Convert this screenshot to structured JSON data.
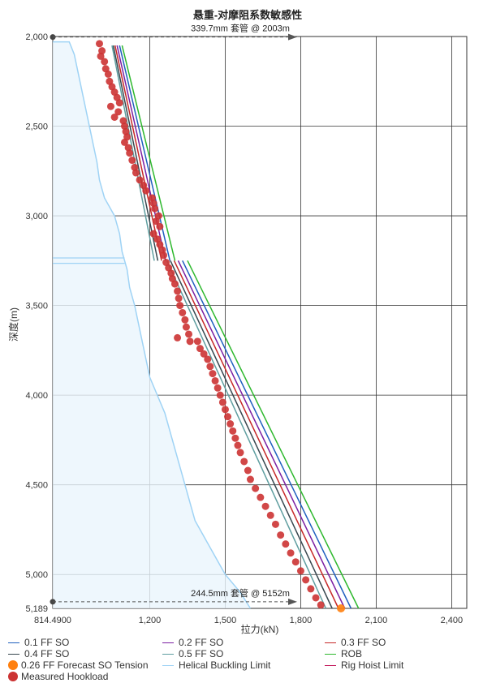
{
  "chart_data": {
    "type": "line",
    "title": "悬重-对摩阻系数敏感性",
    "xlabel": "拉力(kN)",
    "ylabel": "深度(m)",
    "xlim": [
      814.49,
      2460
    ],
    "ylim": [
      2000,
      5189
    ],
    "y_inverted": true,
    "x_ticks": [
      814.49,
      1200,
      1500,
      1800,
      2100,
      2400
    ],
    "x_tick_labels": [
      "814.4900",
      "1,200",
      "1,500",
      "1,800",
      "2,100",
      "2,400"
    ],
    "y_ticks": [
      2000,
      2500,
      3000,
      3500,
      4000,
      4500,
      5000,
      5189
    ],
    "y_tick_labels": [
      "2,000",
      "2,500",
      "3,000",
      "3,500",
      "4,000",
      "4,500",
      "5,000",
      "5,189"
    ],
    "grid": true,
    "legend_position": "bottom",
    "annotations": [
      {
        "text": "339.7mm 套管 @ 2003m",
        "depth": 2003
      },
      {
        "text": "244.5mm 套管 @ 5152m",
        "depth": 5152
      }
    ],
    "series": [
      {
        "name": "0.1 FF SO",
        "color": "#1f5fbf",
        "style": "line",
        "points": [
          [
            1080,
            2050
          ],
          [
            1280,
            3250
          ],
          [
            1330,
            3250
          ],
          [
            2000,
            5189
          ]
        ]
      },
      {
        "name": "0.2 FF SO",
        "color": "#7b1fa2",
        "style": "line",
        "points": [
          [
            1070,
            2050
          ],
          [
            1263,
            3250
          ],
          [
            1313,
            3250
          ],
          [
            1975,
            5189
          ]
        ]
      },
      {
        "name": "0.3 FF SO",
        "color": "#c62828",
        "style": "line",
        "points": [
          [
            1062,
            2050
          ],
          [
            1247,
            3250
          ],
          [
            1297,
            3250
          ],
          [
            1950,
            5189
          ]
        ]
      },
      {
        "name": "0.4 FF SO",
        "color": "#37474f",
        "style": "line",
        "points": [
          [
            1055,
            2050
          ],
          [
            1232,
            3250
          ],
          [
            1282,
            3250
          ],
          [
            1925,
            5189
          ]
        ]
      },
      {
        "name": "0.5 FF SO",
        "color": "#5f9ea0",
        "style": "line",
        "points": [
          [
            1050,
            2050
          ],
          [
            1218,
            3250
          ],
          [
            1268,
            3250
          ],
          [
            1900,
            5189
          ]
        ]
      },
      {
        "name": "ROB",
        "color": "#2eb82e",
        "style": "line",
        "points": [
          [
            1090,
            2050
          ],
          [
            1300,
            3250
          ],
          [
            1350,
            3250
          ],
          [
            2030,
            5189
          ]
        ]
      },
      {
        "name": "0.26 FF Forecast SO Tension",
        "color": "#ff7f0e",
        "style": "marker",
        "points": [
          [
            1960,
            5189
          ]
        ]
      },
      {
        "name": "Helical Buckling Limit",
        "color": "#9fd3f5",
        "style": "area",
        "points": [
          [
            814.49,
            2030
          ],
          [
            880,
            2030
          ],
          [
            900,
            2100
          ],
          [
            930,
            2300
          ],
          [
            960,
            2500
          ],
          [
            990,
            2700
          ],
          [
            1000,
            2800
          ],
          [
            1020,
            2900
          ],
          [
            1060,
            3000
          ],
          [
            1080,
            3100
          ],
          [
            1090,
            3200
          ],
          [
            1100,
            3250
          ],
          [
            1110,
            3300
          ],
          [
            1120,
            3400
          ],
          [
            1140,
            3500
          ],
          [
            1170,
            3700
          ],
          [
            1200,
            3900
          ],
          [
            1230,
            4000
          ],
          [
            1260,
            4100
          ],
          [
            1300,
            4300
          ],
          [
            1340,
            4500
          ],
          [
            1380,
            4700
          ],
          [
            1420,
            4800
          ],
          [
            1460,
            4900
          ],
          [
            1500,
            5000
          ],
          [
            1560,
            5100
          ],
          [
            1600,
            5189
          ]
        ]
      },
      {
        "name": "Rig Hoist Limit",
        "color": "#c2185b",
        "style": "line",
        "points": []
      },
      {
        "name": "Measured Hookload",
        "color": "#cc3333",
        "style": "marker",
        "points": [
          [
            1000,
            2040
          ],
          [
            1010,
            2080
          ],
          [
            1005,
            2110
          ],
          [
            1020,
            2140
          ],
          [
            1025,
            2180
          ],
          [
            1035,
            2210
          ],
          [
            1040,
            2250
          ],
          [
            1050,
            2280
          ],
          [
            1060,
            2310
          ],
          [
            1070,
            2340
          ],
          [
            1080,
            2370
          ],
          [
            1045,
            2390
          ],
          [
            1075,
            2420
          ],
          [
            1060,
            2450
          ],
          [
            1095,
            2470
          ],
          [
            1100,
            2500
          ],
          [
            1105,
            2530
          ],
          [
            1110,
            2560
          ],
          [
            1100,
            2590
          ],
          [
            1115,
            2620
          ],
          [
            1120,
            2650
          ],
          [
            1130,
            2690
          ],
          [
            1140,
            2730
          ],
          [
            1145,
            2760
          ],
          [
            1160,
            2800
          ],
          [
            1175,
            2830
          ],
          [
            1185,
            2860
          ],
          [
            1210,
            2900
          ],
          [
            1215,
            2930
          ],
          [
            1220,
            2960
          ],
          [
            1235,
            3000
          ],
          [
            1225,
            3030
          ],
          [
            1240,
            3060
          ],
          [
            1215,
            3100
          ],
          [
            1230,
            3130
          ],
          [
            1240,
            3160
          ],
          [
            1250,
            3190
          ],
          [
            1255,
            3220
          ],
          [
            1265,
            3260
          ],
          [
            1275,
            3290
          ],
          [
            1285,
            3320
          ],
          [
            1290,
            3350
          ],
          [
            1300,
            3380
          ],
          [
            1310,
            3420
          ],
          [
            1315,
            3460
          ],
          [
            1320,
            3500
          ],
          [
            1330,
            3540
          ],
          [
            1340,
            3580
          ],
          [
            1345,
            3620
          ],
          [
            1355,
            3660
          ],
          [
            1360,
            3700
          ],
          [
            1400,
            3740
          ],
          [
            1415,
            3770
          ],
          [
            1430,
            3800
          ],
          [
            1440,
            3840
          ],
          [
            1450,
            3880
          ],
          [
            1460,
            3920
          ],
          [
            1470,
            3960
          ],
          [
            1480,
            4000
          ],
          [
            1490,
            4040
          ],
          [
            1500,
            4080
          ],
          [
            1510,
            4120
          ],
          [
            1520,
            4160
          ],
          [
            1530,
            4200
          ],
          [
            1540,
            4240
          ],
          [
            1550,
            4280
          ],
          [
            1560,
            4320
          ],
          [
            1575,
            4370
          ],
          [
            1590,
            4420
          ],
          [
            1600,
            4470
          ],
          [
            1620,
            4520
          ],
          [
            1640,
            4570
          ],
          [
            1660,
            4620
          ],
          [
            1680,
            4670
          ],
          [
            1700,
            4720
          ],
          [
            1720,
            4780
          ],
          [
            1740,
            4830
          ],
          [
            1760,
            4880
          ],
          [
            1780,
            4930
          ],
          [
            1800,
            4980
          ],
          [
            1820,
            5030
          ],
          [
            1840,
            5080
          ],
          [
            1860,
            5130
          ],
          [
            1880,
            5170
          ],
          [
            1310,
            3680
          ],
          [
            1390,
            3700
          ]
        ]
      }
    ]
  }
}
